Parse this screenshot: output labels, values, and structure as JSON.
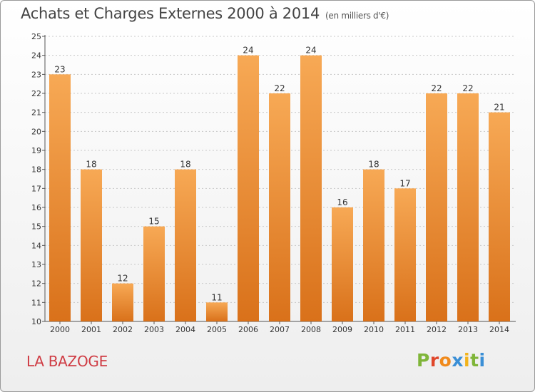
{
  "title": "Achats et Charges Externes 2000 à 2014",
  "subtitle": "(en milliers d'€)",
  "place": "LA BAZOGE",
  "logo": {
    "text": "Proxiti",
    "colors": [
      "#7fb539",
      "#e0472b",
      "#f08a1c",
      "#3a8fd6",
      "#f2b31b",
      "#7fb539",
      "#3a8fd6"
    ]
  },
  "colors": {
    "bar_light": "#f7a955",
    "bar_dark": "#d9711a",
    "grid": "#c8c8c8"
  },
  "chart_data": {
    "type": "bar",
    "title": "Achats et Charges Externes 2000 à 2014",
    "subtitle": "(en milliers d'€)",
    "categories": [
      "2000",
      "2001",
      "2002",
      "2003",
      "2004",
      "2005",
      "2006",
      "2007",
      "2008",
      "2009",
      "2010",
      "2011",
      "2012",
      "2013",
      "2014"
    ],
    "values": [
      23,
      18,
      12,
      15,
      18,
      11,
      24,
      22,
      24,
      16,
      18,
      17,
      22,
      22,
      21
    ],
    "ylim": [
      10,
      25
    ],
    "yticks": [
      10,
      11,
      12,
      13,
      14,
      15,
      16,
      17,
      18,
      19,
      20,
      21,
      22,
      23,
      24,
      25
    ],
    "grid": true
  }
}
